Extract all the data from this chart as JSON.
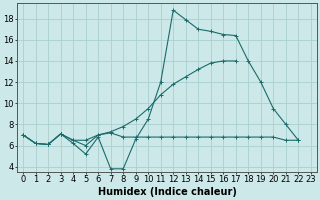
{
  "xlabel": "Humidex (Indice chaleur)",
  "bg_color": "#cce8e8",
  "line_color": "#1a6b6b",
  "grid_color": "#aacfcf",
  "xlim": [
    -0.5,
    23.5
  ],
  "ylim": [
    3.5,
    19.5
  ],
  "xticks": [
    0,
    1,
    2,
    3,
    4,
    5,
    6,
    7,
    8,
    9,
    10,
    11,
    12,
    13,
    14,
    15,
    16,
    17,
    18,
    19,
    20,
    21,
    22,
    23
  ],
  "yticks": [
    4,
    6,
    8,
    10,
    12,
    14,
    16,
    18
  ],
  "series": [
    [
      7.0,
      6.2,
      6.1,
      7.1,
      6.2,
      5.2,
      6.8,
      3.8,
      3.8,
      6.6,
      8.5,
      12.0,
      18.8,
      17.9,
      17.0,
      16.8,
      16.5,
      16.4,
      14.0,
      12.0,
      9.5,
      8.0,
      6.5,
      null
    ],
    [
      7.0,
      6.2,
      6.1,
      7.1,
      6.5,
      6.0,
      7.0,
      7.3,
      7.8,
      8.5,
      9.5,
      10.8,
      11.8,
      12.5,
      13.2,
      13.8,
      14.0,
      14.0,
      null,
      null,
      null,
      null,
      null,
      null
    ],
    [
      7.0,
      6.2,
      6.1,
      7.1,
      6.5,
      6.5,
      7.0,
      7.2,
      6.8,
      6.8,
      6.8,
      6.8,
      6.8,
      6.8,
      6.8,
      6.8,
      6.8,
      6.8,
      6.8,
      6.8,
      6.8,
      6.5,
      6.5,
      null
    ]
  ],
  "xlabel_fontsize": 7,
  "tick_fontsize": 6
}
